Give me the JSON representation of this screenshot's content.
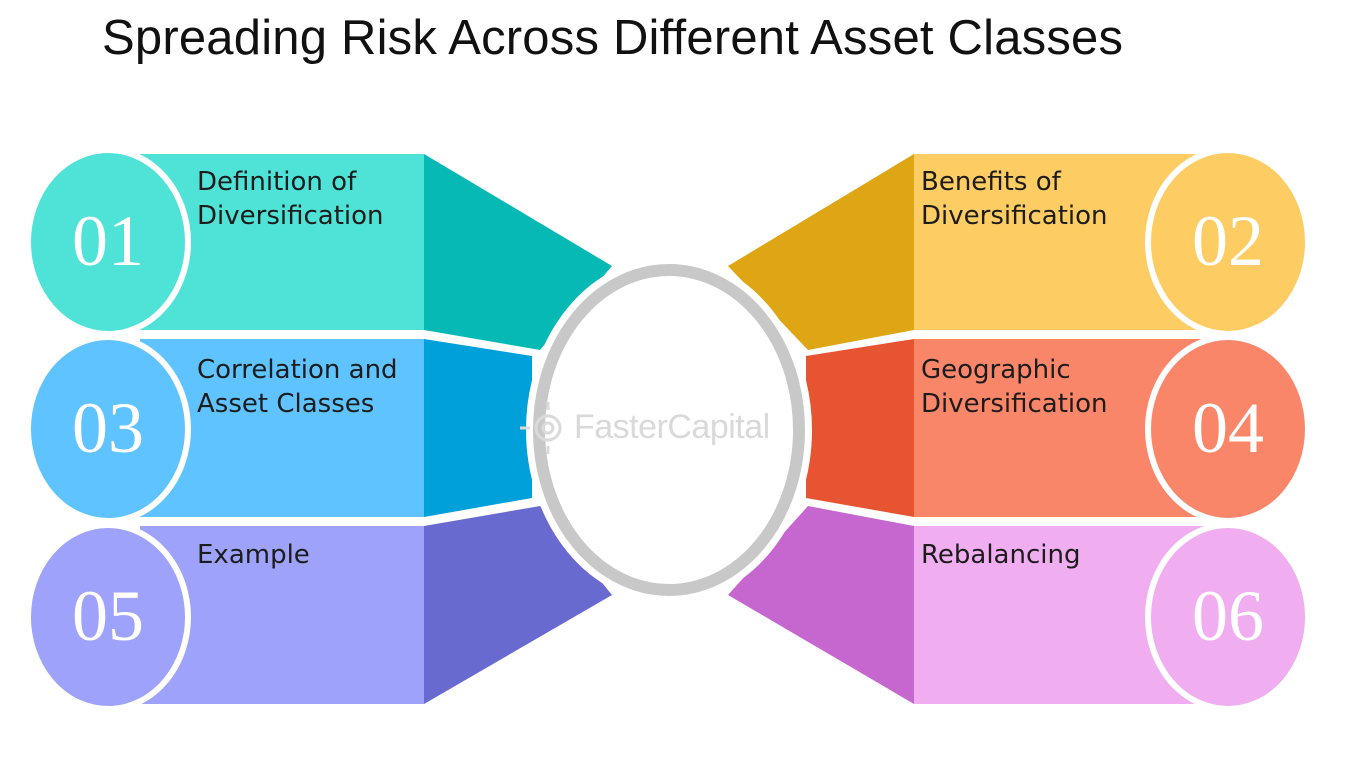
{
  "title": "Spreading Risk Across Different Asset Classes",
  "watermark": "FasterCapital",
  "colors": {
    "item1": "#4fe2d6",
    "item1_dark": "#06b9b5",
    "item2": "#fdcc63",
    "item2_dark": "#dea615",
    "item3": "#5ec3ff",
    "item3_dark": "#00a1da",
    "item4": "#fa866a",
    "item4_dark": "#e75432",
    "item5": "#9ea2fa",
    "item5_dark": "#686ad0",
    "item6": "#f0aef0",
    "item6_dark": "#c667cf",
    "ring": "#c8c8c8"
  },
  "items": [
    {
      "number": "01",
      "label": "Definition of Diversification",
      "icon": "circle-number"
    },
    {
      "number": "02",
      "label": "Benefits of Diversification",
      "icon": "circle-number"
    },
    {
      "number": "03",
      "label": "Correlation and Asset Classes",
      "icon": "circle-number"
    },
    {
      "number": "04",
      "label": "Geographic Diversification",
      "icon": "circle-number"
    },
    {
      "number": "05",
      "label": "Example",
      "icon": "circle-number"
    },
    {
      "number": "06",
      "label": "Rebalancing",
      "icon": "circle-number"
    }
  ]
}
